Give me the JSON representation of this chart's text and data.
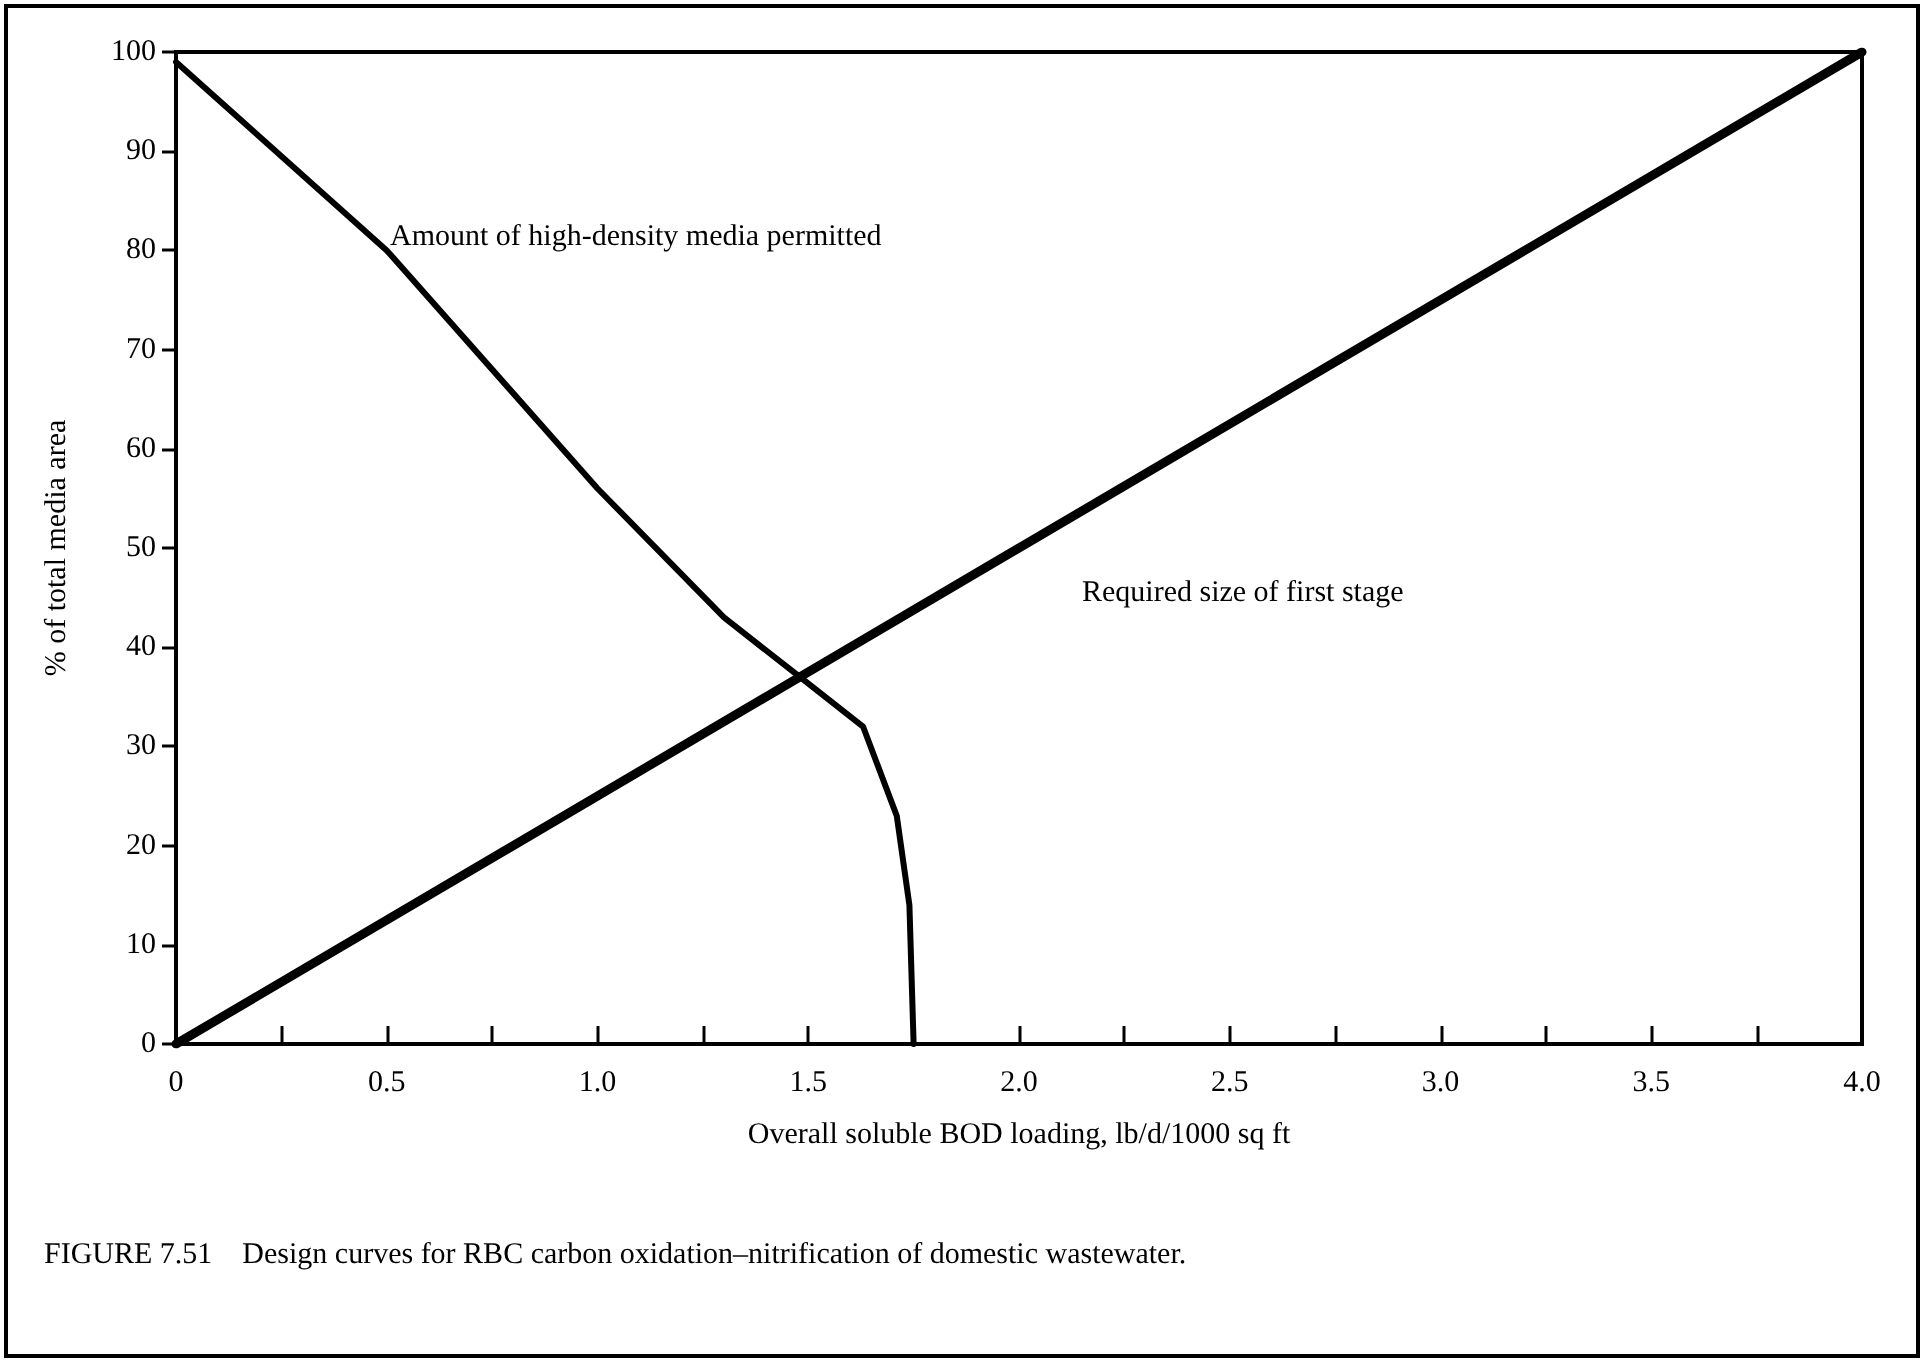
{
  "chart_data": {
    "type": "line",
    "xlabel": "Overall soluble BOD loading, lb/d/1000 sq ft",
    "ylabel": "% of total media area",
    "xlim": [
      0,
      4.0
    ],
    "ylim": [
      0,
      100
    ],
    "xticks": [
      0,
      {
        "value": 0.25,
        "label": null
      },
      {
        "value": 0.5,
        "label": "0.5"
      },
      {
        "value": 0.75,
        "label": null
      },
      {
        "value": 1,
        "label": "1.0"
      },
      {
        "value": 1.25,
        "label": null
      },
      {
        "value": 1.5,
        "label": "1.5"
      },
      {
        "value": 1.75,
        "label": null
      },
      {
        "value": 2,
        "label": "2.0"
      },
      {
        "value": 2.25,
        "label": null
      },
      {
        "value": 2.5,
        "label": "2.5"
      },
      {
        "value": 2.75,
        "label": null
      },
      {
        "value": 3,
        "label": "3.0"
      },
      {
        "value": 3.25,
        "label": null
      },
      {
        "value": 3.5,
        "label": "3.5"
      },
      {
        "value": 3.75,
        "label": null
      },
      {
        "value": 4,
        "label": "4.0"
      }
    ],
    "yticks": [
      0,
      10,
      20,
      30,
      40,
      50,
      60,
      70,
      80,
      90,
      100
    ],
    "grid": false,
    "marker": "none",
    "line_style": "solid",
    "series": [
      {
        "name": "Amount of high-density media permitted",
        "color": "#000000",
        "x": [
          0,
          0.5,
          1.0,
          1.3,
          1.48,
          1.63,
          1.71,
          1.74,
          1.75
        ],
        "values": [
          99,
          80,
          56,
          43,
          37,
          32,
          23,
          14,
          0
        ]
      },
      {
        "name": "Required size of first stage",
        "color": "#000000",
        "x": [
          0,
          4.0
        ],
        "values": [
          0,
          100
        ]
      }
    ],
    "annotations": [
      "FIGURE 7.51    Design curves for RBC carbon oxidation–nitrification of domestic wastewater."
    ]
  }
}
